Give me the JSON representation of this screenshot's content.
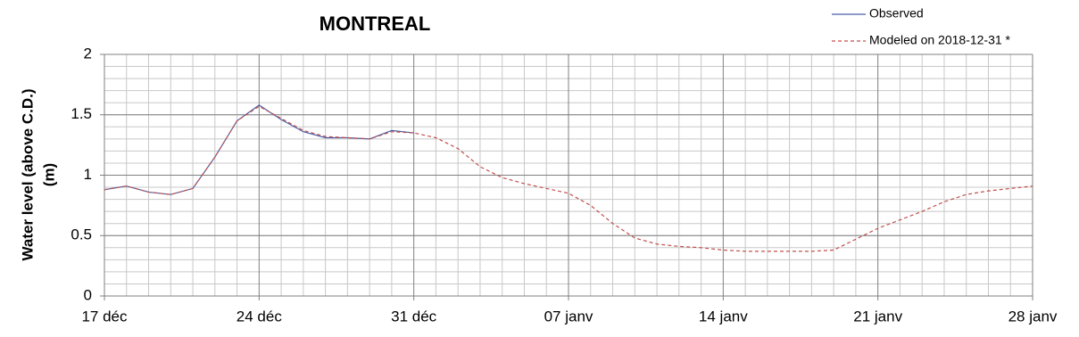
{
  "chart_data": {
    "type": "line",
    "title": "MONTREAL",
    "ylabel": [
      "Water level (above C.D.)",
      "(m)"
    ],
    "categories": [
      "17 déc",
      null,
      null,
      null,
      null,
      null,
      null,
      "24 déc",
      null,
      null,
      null,
      null,
      null,
      null,
      "31 déc",
      null,
      null,
      null,
      null,
      null,
      null,
      "07 janv",
      null,
      null,
      null,
      null,
      null,
      null,
      "14 janv",
      null,
      null,
      null,
      null,
      null,
      null,
      "21 janv",
      null,
      null,
      null,
      null,
      null,
      null,
      "28 janv"
    ],
    "series": [
      {
        "name": "Observed",
        "color": "#4a5ea8",
        "dashed": false,
        "values": [
          0.88,
          0.91,
          0.86,
          0.84,
          0.89,
          1.15,
          1.45,
          1.58,
          1.46,
          1.36,
          1.31,
          1.31,
          1.3,
          1.37,
          1.35,
          null,
          null,
          null,
          null,
          null,
          null,
          null,
          null,
          null,
          null,
          null,
          null,
          null,
          null,
          null,
          null,
          null,
          null,
          null,
          null,
          null,
          null,
          null,
          null,
          null,
          null,
          null,
          null
        ]
      },
      {
        "name": "Modeled on 2018-12-31 *",
        "color": "#c0504d",
        "dashed": true,
        "values": [
          0.88,
          0.91,
          0.86,
          0.84,
          0.89,
          1.15,
          1.45,
          1.57,
          1.47,
          1.37,
          1.32,
          1.31,
          1.3,
          1.36,
          1.35,
          1.31,
          1.22,
          1.07,
          0.98,
          0.93,
          0.89,
          0.85,
          0.75,
          0.6,
          0.48,
          0.43,
          0.41,
          0.4,
          0.38,
          0.37,
          0.37,
          0.37,
          0.37,
          0.38,
          0.47,
          0.56,
          0.63,
          0.7,
          0.78,
          0.84,
          0.87,
          0.89,
          0.91
        ]
      }
    ],
    "ylim": [
      0,
      2
    ],
    "yticks": [
      0,
      0.5,
      1,
      1.5,
      2
    ],
    "grid": true,
    "legend": "top-right"
  }
}
